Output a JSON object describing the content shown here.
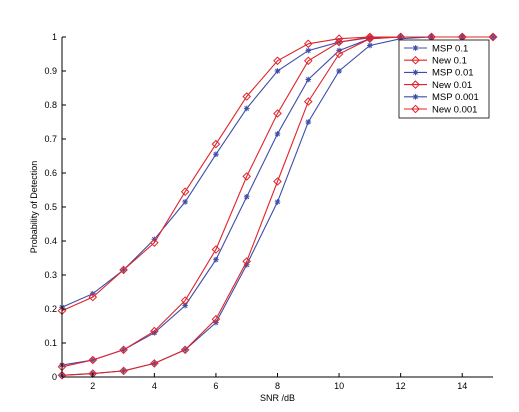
{
  "chart_data": {
    "type": "line",
    "title": "",
    "xlabel": "SNR /dB",
    "ylabel": "Probability of Detection",
    "xlim": [
      1,
      15
    ],
    "ylim": [
      0,
      1
    ],
    "xticks": [
      2,
      4,
      6,
      8,
      10,
      12,
      14
    ],
    "yticks": [
      0,
      0.1,
      0.2,
      0.3,
      0.4,
      0.5,
      0.6,
      0.7,
      0.8,
      0.9,
      1
    ],
    "grid": false,
    "legend_position": "top-right",
    "x": [
      1,
      2,
      3,
      4,
      5,
      6,
      7,
      8,
      9,
      10,
      11,
      12,
      13,
      14,
      15
    ],
    "series": [
      {
        "name": "MSP 0.1",
        "color": "#3c4ea8",
        "marker": "star",
        "values": [
          0.205,
          0.245,
          0.315,
          0.405,
          0.515,
          0.655,
          0.79,
          0.9,
          0.96,
          0.985,
          0.998,
          1.0,
          1.0,
          1.0,
          1.0
        ]
      },
      {
        "name": "New 0.1",
        "color": "#e0232a",
        "marker": "diamond",
        "values": [
          0.195,
          0.235,
          0.315,
          0.395,
          0.545,
          0.685,
          0.825,
          0.93,
          0.98,
          0.995,
          1.0,
          1.0,
          1.0,
          1.0,
          1.0
        ]
      },
      {
        "name": "MSP 0.01",
        "color": "#3c4ea8",
        "marker": "star",
        "values": [
          0.035,
          0.05,
          0.08,
          0.13,
          0.21,
          0.345,
          0.53,
          0.715,
          0.875,
          0.96,
          0.995,
          1.0,
          1.0,
          1.0,
          1.0
        ]
      },
      {
        "name": "New 0.01",
        "color": "#e0232a",
        "marker": "diamond",
        "values": [
          0.03,
          0.05,
          0.08,
          0.135,
          0.225,
          0.375,
          0.59,
          0.775,
          0.93,
          0.985,
          1.0,
          1.0,
          1.0,
          1.0,
          1.0
        ]
      },
      {
        "name": "MSP 0.001",
        "color": "#3c4ea8",
        "marker": "star",
        "values": [
          0.005,
          0.01,
          0.018,
          0.04,
          0.08,
          0.16,
          0.33,
          0.515,
          0.75,
          0.9,
          0.975,
          0.995,
          1.0,
          1.0,
          1.0
        ]
      },
      {
        "name": "New 0.001",
        "color": "#e0232a",
        "marker": "diamond",
        "values": [
          0.005,
          0.01,
          0.018,
          0.04,
          0.08,
          0.17,
          0.34,
          0.575,
          0.81,
          0.95,
          0.995,
          1.0,
          1.0,
          1.0,
          1.0
        ]
      }
    ]
  }
}
